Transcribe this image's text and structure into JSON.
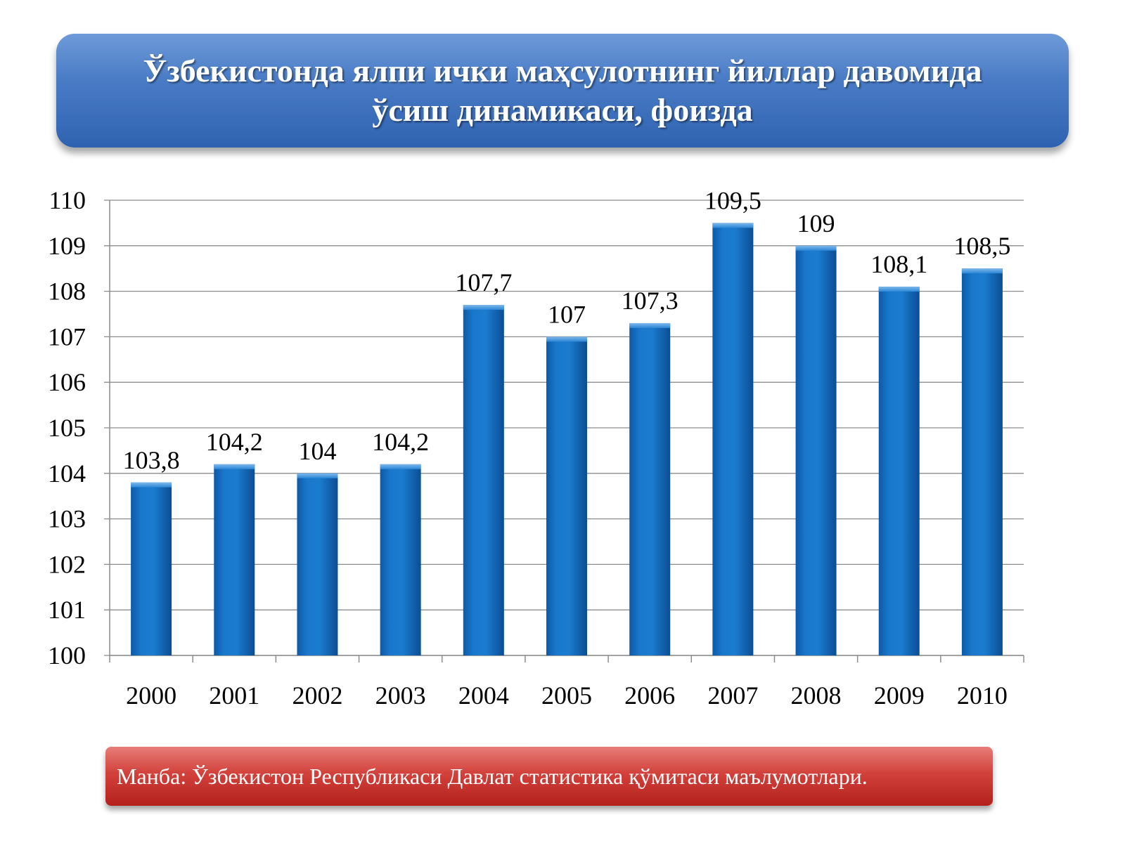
{
  "title": {
    "line1": "Ўзбекистонда ялпи ички маҳсулотнинг йиллар давомида",
    "line2": "ўсиш динамикаси, фоизда"
  },
  "source": {
    "text": "Манба: Ўзбекистон Республикаси Давлат статистика қўмитаси маълумотлари."
  },
  "colors": {
    "title_banner": "#3a6ebb",
    "source_banner": "#c9302c",
    "bar": "#1a72c2",
    "grid": "#8c8c8c"
  },
  "chart_data": {
    "type": "bar",
    "categories": [
      "2000",
      "2001",
      "2002",
      "2003",
      "2004",
      "2005",
      "2006",
      "2007",
      "2008",
      "2009",
      "2010"
    ],
    "values": [
      103.8,
      104.2,
      104,
      104.2,
      107.7,
      107,
      107.3,
      109.5,
      109,
      108.1,
      108.5
    ],
    "data_labels": [
      "103,8",
      "104,2",
      "104",
      "104,2",
      "107,7",
      "107",
      "107,3",
      "109,5",
      "109",
      "108,1",
      "108,5"
    ],
    "y_ticks": [
      "100",
      "101",
      "102",
      "103",
      "104",
      "105",
      "106",
      "107",
      "108",
      "109",
      "110"
    ],
    "ylim": [
      100,
      110
    ],
    "grid": true,
    "legend": "none"
  }
}
